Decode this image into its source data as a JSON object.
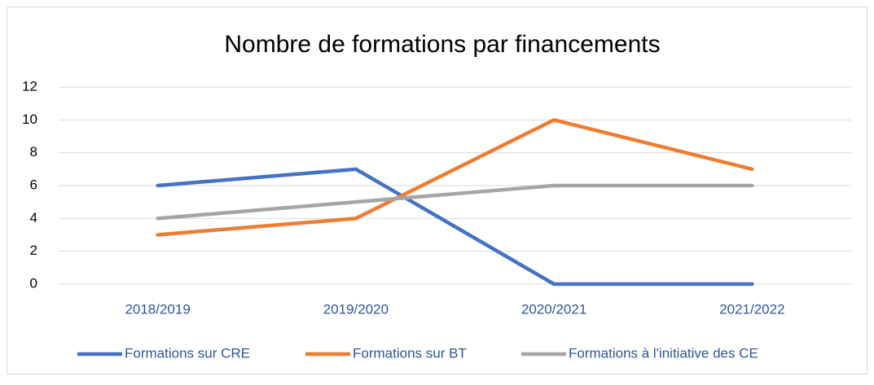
{
  "chart_data": {
    "type": "line",
    "title": "Nombre de formations par financements",
    "categories": [
      "2018/2019",
      "2019/2020",
      "2020/2021",
      "2021/2022"
    ],
    "series": [
      {
        "name": "Formations sur CRE",
        "color": "#4472c4",
        "values": [
          6,
          7,
          0,
          0
        ]
      },
      {
        "name": "Formations sur BT",
        "color": "#ed7d31",
        "values": [
          3,
          4,
          10,
          7
        ]
      },
      {
        "name": "Formations à l'initiative des CE",
        "color": "#a5a5a5",
        "values": [
          4,
          5,
          6,
          6
        ]
      }
    ],
    "ylim": [
      0,
      12
    ],
    "yticks": [
      0,
      2,
      4,
      6,
      8,
      10,
      12
    ],
    "grid": true,
    "legend": "bottom"
  }
}
